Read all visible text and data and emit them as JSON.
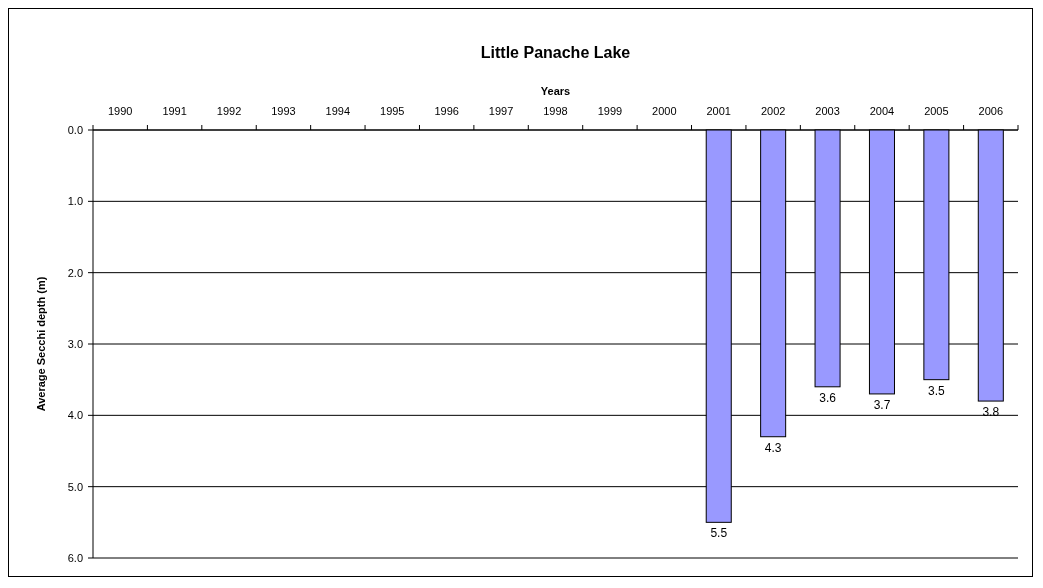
{
  "chart_data": {
    "type": "bar",
    "title": "Little Panache Lake",
    "xlabel": "Years",
    "ylabel": "Average Secchi depth (m)",
    "categories": [
      "1990",
      "1991",
      "1992",
      "1993",
      "1994",
      "1995",
      "1996",
      "1997",
      "1998",
      "1999",
      "2000",
      "2001",
      "2002",
      "2003",
      "2004",
      "2005",
      "2006"
    ],
    "values": [
      null,
      null,
      null,
      null,
      null,
      null,
      null,
      null,
      null,
      null,
      null,
      5.5,
      4.3,
      3.6,
      3.7,
      3.5,
      3.8
    ],
    "color": "#9999ff",
    "ylim": [
      6,
      0
    ],
    "yticks": [
      {
        "value": 0,
        "label": "0.0"
      },
      {
        "value": 1,
        "label": "1.0"
      },
      {
        "value": 2,
        "label": "2.0"
      },
      {
        "value": 3,
        "label": "3.0"
      },
      {
        "value": 4,
        "label": "4.0"
      },
      {
        "value": 5,
        "label": "5.0"
      },
      {
        "value": 6,
        "label": "6.0"
      }
    ],
    "grid": "y",
    "data_labels": true
  }
}
